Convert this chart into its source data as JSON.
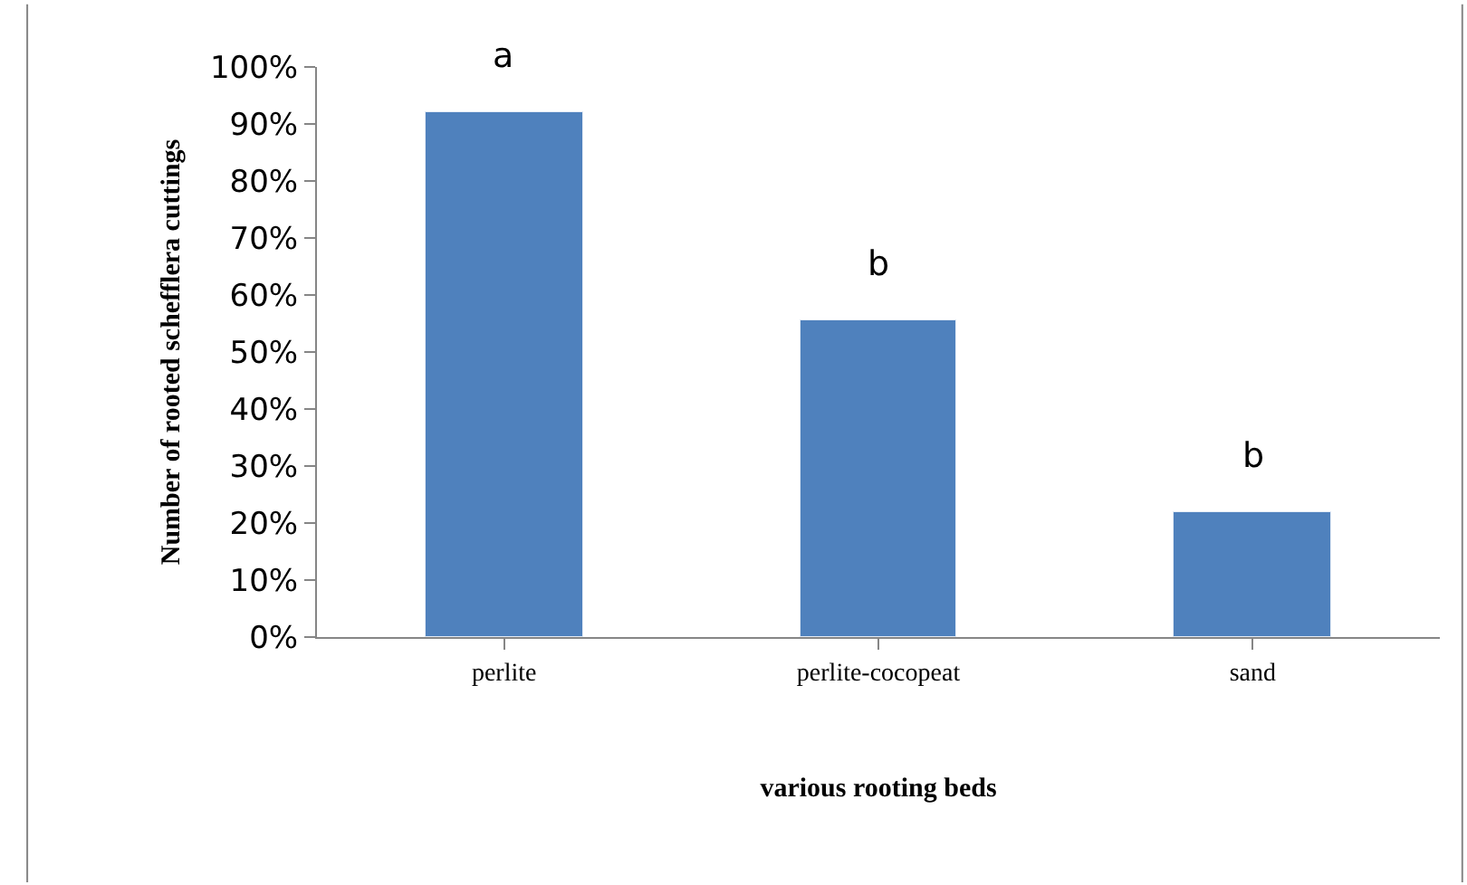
{
  "chart_data": {
    "type": "bar",
    "xlabel": "various rooting beds",
    "ylabel": "Number of rooted schefflera cuttings",
    "categories": [
      "perlite",
      "perlite-cocopeat",
      "sand"
    ],
    "values": [
      92,
      55.5,
      22
    ],
    "color": "#4f81bd",
    "ylim": [
      0,
      100
    ],
    "yticks": [
      {
        "value": 0,
        "label": "0%"
      },
      {
        "value": 10,
        "label": "10%"
      },
      {
        "value": 20,
        "label": "20%"
      },
      {
        "value": 30,
        "label": "30%"
      },
      {
        "value": 40,
        "label": "40%"
      },
      {
        "value": 50,
        "label": "50%"
      },
      {
        "value": 60,
        "label": "60%"
      },
      {
        "value": 70,
        "label": "70%"
      },
      {
        "value": 80,
        "label": "80%"
      },
      {
        "value": 90,
        "label": "90%"
      },
      {
        "value": 100,
        "label": "100%"
      }
    ],
    "annotations": [
      "a",
      "b",
      "b"
    ]
  }
}
